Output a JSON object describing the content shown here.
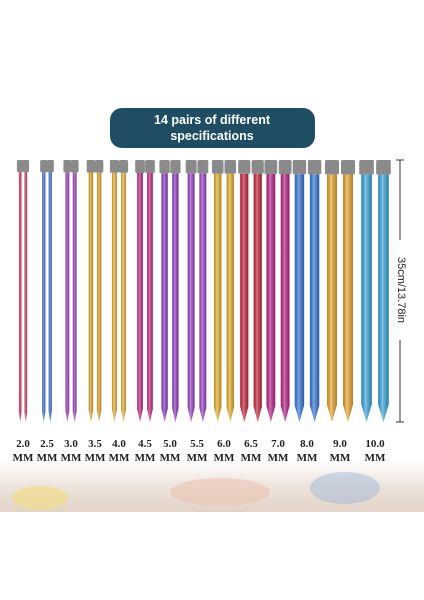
{
  "banner": {
    "line1": "14 pairs of different",
    "line2": "specifications"
  },
  "length_label": "35cm/13.78in",
  "needles": [
    {
      "size": "2.0",
      "unit": "MM",
      "color": "#d0335a"
    },
    {
      "size": "2.5",
      "unit": "MM",
      "color": "#3f6fd0"
    },
    {
      "size": "3.0",
      "unit": "MM",
      "color": "#9a3fb8"
    },
    {
      "size": "3.5",
      "unit": "MM",
      "color": "#e0a52a"
    },
    {
      "size": "4.0",
      "unit": "MM",
      "color": "#e8b43a"
    },
    {
      "size": "4.5",
      "unit": "MM",
      "color": "#c42a86"
    },
    {
      "size": "5.0",
      "unit": "MM",
      "color": "#8d3cc0"
    },
    {
      "size": "5.5",
      "unit": "MM",
      "color": "#9b45c8"
    },
    {
      "size": "6.0",
      "unit": "MM",
      "color": "#e6b030"
    },
    {
      "size": "6.5",
      "unit": "MM",
      "color": "#c8283e"
    },
    {
      "size": "7.0",
      "unit": "MM",
      "color": "#b8268a"
    },
    {
      "size": "8.0",
      "unit": "MM",
      "color": "#3a78d8"
    },
    {
      "size": "9.0",
      "unit": "MM",
      "color": "#e5a630"
    },
    {
      "size": "10.0",
      "unit": "MM",
      "color": "#3aa6dc"
    }
  ]
}
